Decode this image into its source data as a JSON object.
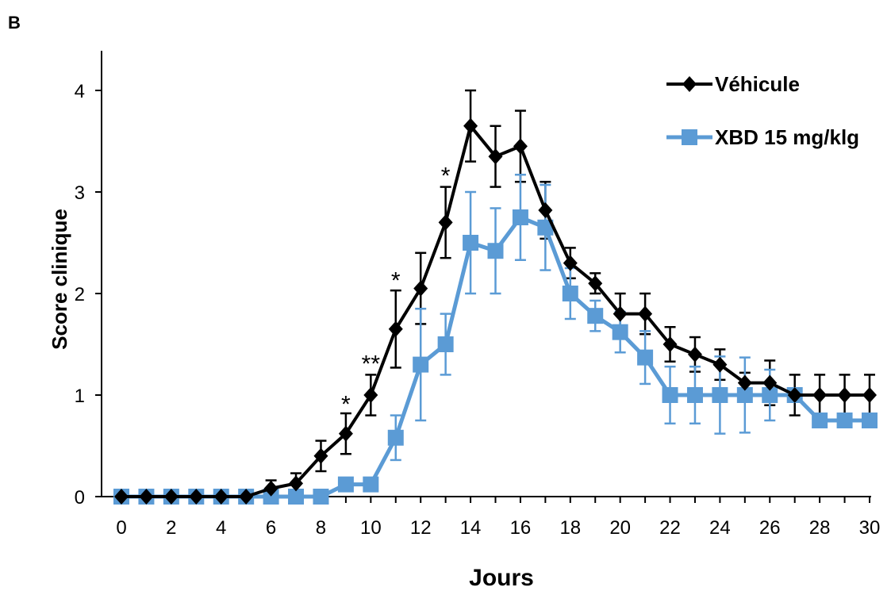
{
  "panel_label": "B",
  "colors": {
    "vehicule": "#000000",
    "xbd": "#5B9BD5",
    "axis": "#000000"
  },
  "chart_data": {
    "type": "line",
    "xlabel": "Jours",
    "ylabel": "Score clinique",
    "xlim": [
      0,
      30
    ],
    "ylim": [
      0,
      4
    ],
    "x_ticks": [
      0,
      2,
      4,
      6,
      8,
      10,
      12,
      14,
      16,
      18,
      20,
      22,
      24,
      26,
      28,
      30
    ],
    "y_ticks": [
      0,
      1,
      2,
      3,
      4
    ],
    "grid": false,
    "legend_position": "top-right",
    "x": [
      0,
      1,
      2,
      3,
      4,
      5,
      6,
      7,
      8,
      9,
      10,
      11,
      12,
      13,
      14,
      15,
      16,
      17,
      18,
      19,
      20,
      21,
      22,
      23,
      24,
      25,
      26,
      27,
      28,
      29,
      30
    ],
    "series": [
      {
        "name": "Véhicule",
        "marker": "diamond",
        "values": [
          0,
          0,
          0,
          0,
          0,
          0,
          0.08,
          0.13,
          0.4,
          0.62,
          1.0,
          1.65,
          2.05,
          2.7,
          3.65,
          3.35,
          3.45,
          2.82,
          2.3,
          2.1,
          1.8,
          1.8,
          1.5,
          1.4,
          1.3,
          1.12,
          1.12,
          1.0,
          1.0,
          1.0,
          1.0
        ],
        "errors": [
          0,
          0,
          0,
          0,
          0,
          0,
          0.08,
          0.1,
          0.15,
          0.2,
          0.2,
          0.38,
          0.35,
          0.35,
          0.35,
          0.3,
          0.35,
          0.28,
          0.15,
          0.1,
          0.2,
          0.2,
          0.17,
          0.17,
          0.15,
          0.1,
          0.22,
          0.2,
          0.2,
          0.2,
          0.2
        ]
      },
      {
        "name": "XBD 15 mg/klg",
        "marker": "square",
        "values": [
          0,
          0,
          0,
          0,
          0,
          0,
          0,
          0,
          0,
          0.12,
          0.12,
          0.58,
          1.3,
          1.5,
          2.5,
          2.42,
          2.75,
          2.65,
          2.0,
          1.78,
          1.62,
          1.37,
          1.0,
          1.0,
          1.0,
          1.0,
          1.0,
          1.0,
          0.75,
          0.75,
          0.75
        ],
        "errors": [
          0,
          0,
          0,
          0,
          0,
          0,
          0,
          0,
          0,
          0,
          0,
          0.22,
          0.55,
          0.3,
          0.5,
          0.42,
          0.42,
          0.42,
          0.25,
          0.15,
          0.2,
          0.26,
          0.28,
          0.28,
          0.38,
          0.37,
          0.25,
          0,
          0,
          0,
          0
        ]
      }
    ],
    "annotations": [
      {
        "x": 9,
        "y": 0.8,
        "text": "*"
      },
      {
        "x": 10,
        "y": 1.2,
        "text": "**"
      },
      {
        "x": 11,
        "y": 2.02,
        "text": "*"
      },
      {
        "x": 13,
        "y": 3.05,
        "text": "*"
      }
    ]
  }
}
